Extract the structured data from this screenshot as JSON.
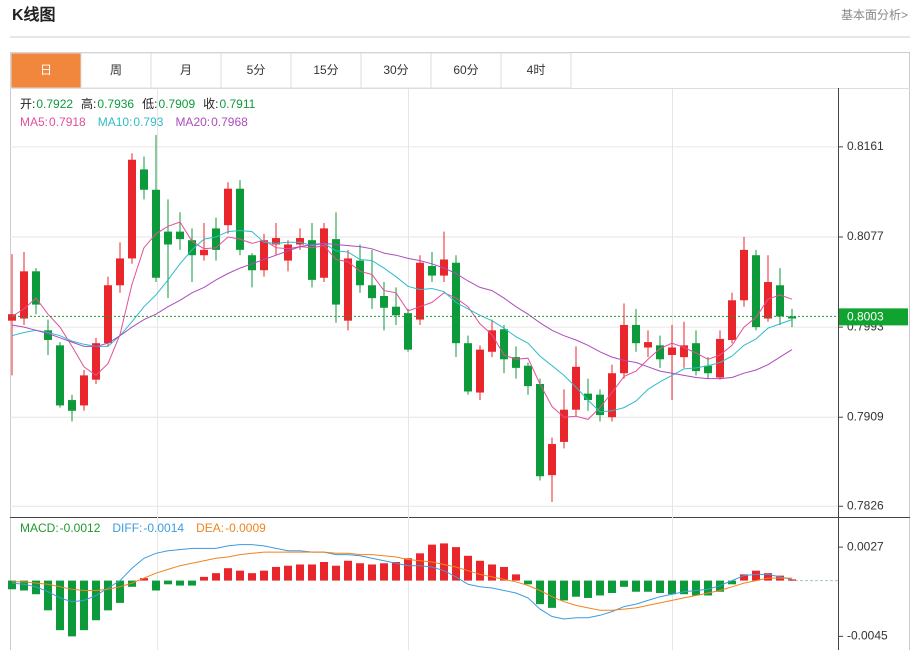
{
  "header": {
    "title": "K线图",
    "link": "基本面分析>"
  },
  "tabs": [
    "日",
    "周",
    "月",
    "5分",
    "15分",
    "30分",
    "60分",
    "4时"
  ],
  "active_tab": 0,
  "chart_data": {
    "type": "candlestick",
    "ohlc_readout": [
      {
        "label": "开:",
        "value": 0.7922
      },
      {
        "label": "高:",
        "value": 0.7936
      },
      {
        "label": "低:",
        "value": 0.7909
      },
      {
        "label": "收:",
        "value": 0.7911
      }
    ],
    "up_color": "#e8262b",
    "down_color": "#0d9a3a",
    "ylim": [
      0.7816,
      0.8214
    ],
    "yticks": [
      0.8161,
      0.8077,
      0.7993,
      0.7909,
      0.7826
    ],
    "grid": true,
    "last_price": 0.8003,
    "open": [
      0.7999,
      0.8001,
      0.8045,
      0.799,
      0.7976,
      0.7925,
      0.792,
      0.7944,
      0.7978,
      0.8032,
      0.8057,
      0.814,
      0.8121,
      0.8082,
      0.8082,
      0.8074,
      0.806,
      0.8085,
      0.8088,
      0.8122,
      0.806,
      0.8046,
      0.807,
      0.8055,
      0.807,
      0.8074,
      0.8039,
      0.8075,
      0.7999,
      0.8055,
      0.8032,
      0.8022,
      0.8012,
      0.8006,
      0.8,
      0.805,
      0.8041,
      0.8053,
      0.7978,
      0.7932,
      0.797,
      0.7991,
      0.7965,
      0.7957,
      0.794,
      0.7855,
      0.7886,
      0.7916,
      0.7931,
      0.793,
      0.7909,
      0.795,
      0.7995,
      0.7974,
      0.7976,
      0.7967,
      0.7965,
      0.7978,
      0.7957,
      0.7946,
      0.7981,
      0.8018,
      0.806,
      0.8001,
      0.8032,
      0.8003
    ],
    "high": [
      0.8061,
      0.8063,
      0.8048,
      0.8,
      0.7979,
      0.793,
      0.7953,
      0.7983,
      0.804,
      0.8072,
      0.8155,
      0.8152,
      0.8172,
      0.8112,
      0.81,
      0.8085,
      0.809,
      0.8095,
      0.8128,
      0.813,
      0.8062,
      0.808,
      0.809,
      0.8074,
      0.8085,
      0.809,
      0.809,
      0.81,
      0.8065,
      0.807,
      0.8065,
      0.8035,
      0.803,
      0.801,
      0.806,
      0.8063,
      0.8082,
      0.806,
      0.7985,
      0.7976,
      0.8,
      0.7995,
      0.7975,
      0.796,
      0.7945,
      0.789,
      0.7935,
      0.7975,
      0.7945,
      0.7935,
      0.7958,
      0.8015,
      0.801,
      0.799,
      0.7985,
      0.7995,
      0.7998,
      0.799,
      0.7965,
      0.799,
      0.8025,
      0.8077,
      0.8065,
      0.806,
      0.8048,
      0.801
    ],
    "low": [
      0.7948,
      0.7995,
      0.8005,
      0.7967,
      0.7918,
      0.7905,
      0.7915,
      0.794,
      0.7975,
      0.8025,
      0.8052,
      0.8112,
      0.8035,
      0.802,
      0.8065,
      0.8035,
      0.8055,
      0.8055,
      0.808,
      0.806,
      0.803,
      0.804,
      0.806,
      0.8045,
      0.8065,
      0.803,
      0.8035,
      0.7997,
      0.799,
      0.8025,
      0.801,
      0.799,
      0.7995,
      0.797,
      0.7995,
      0.8035,
      0.8035,
      0.7965,
      0.793,
      0.7925,
      0.7965,
      0.795,
      0.7945,
      0.793,
      0.785,
      0.783,
      0.788,
      0.791,
      0.7915,
      0.7905,
      0.7905,
      0.7945,
      0.797,
      0.7965,
      0.7955,
      0.7925,
      0.7955,
      0.7948,
      0.7945,
      0.7944,
      0.7978,
      0.8012,
      0.799,
      0.7998,
      0.7995,
      0.7993
    ],
    "close": [
      0.8005,
      0.8045,
      0.8014,
      0.7981,
      0.792,
      0.7915,
      0.7948,
      0.7978,
      0.8032,
      0.8057,
      0.8149,
      0.8121,
      0.8039,
      0.807,
      0.8075,
      0.806,
      0.8065,
      0.8065,
      0.8122,
      0.8065,
      0.8046,
      0.8074,
      0.8076,
      0.807,
      0.8076,
      0.8037,
      0.8085,
      0.8014,
      0.8057,
      0.8032,
      0.802,
      0.8011,
      0.8004,
      0.7972,
      0.8053,
      0.8041,
      0.8056,
      0.7978,
      0.7933,
      0.7972,
      0.799,
      0.7963,
      0.7955,
      0.7938,
      0.7854,
      0.7884,
      0.7916,
      0.7956,
      0.7925,
      0.7911,
      0.795,
      0.7995,
      0.7978,
      0.7979,
      0.7963,
      0.7974,
      0.7976,
      0.7952,
      0.795,
      0.7982,
      0.8018,
      0.8065,
      0.7993,
      0.8035,
      0.8003,
      0.8001
    ],
    "series": [
      {
        "name": "MA5:",
        "current": 0.7918,
        "color": "#e2509a",
        "values": [
          0.8003,
          0.801,
          0.802,
          0.8005,
          0.7993,
          0.7975,
          0.7956,
          0.7948,
          0.7959,
          0.7986,
          0.8033,
          0.8067,
          0.808,
          0.8087,
          0.8091,
          0.8073,
          0.8066,
          0.8067,
          0.8077,
          0.8075,
          0.8071,
          0.8074,
          0.8067,
          0.8066,
          0.8068,
          0.8067,
          0.8069,
          0.8056,
          0.8054,
          0.8045,
          0.8042,
          0.8027,
          0.8025,
          0.8008,
          0.8012,
          0.8016,
          0.8025,
          0.802,
          0.8012,
          0.7996,
          0.7986,
          0.7967,
          0.7963,
          0.7964,
          0.794,
          0.7919,
          0.7909,
          0.791,
          0.7907,
          0.7918,
          0.7932,
          0.7947,
          0.7952,
          0.7963,
          0.7973,
          0.7978,
          0.7974,
          0.7969,
          0.7963,
          0.7967,
          0.7976,
          0.7993,
          0.8002,
          0.8019,
          0.8023,
          0.8019
        ]
      },
      {
        "name": "MA10:",
        "current": 0.793,
        "color": "#30bccb",
        "values": [
          0.7985,
          0.7988,
          0.799,
          0.7988,
          0.7985,
          0.798,
          0.7977,
          0.7975,
          0.7975,
          0.7985,
          0.7998,
          0.8012,
          0.8023,
          0.8037,
          0.8052,
          0.8065,
          0.8075,
          0.8077,
          0.8082,
          0.8083,
          0.8082,
          0.8072,
          0.8071,
          0.8072,
          0.8072,
          0.8069,
          0.8071,
          0.8064,
          0.8063,
          0.8056,
          0.8055,
          0.8048,
          0.804,
          0.8031,
          0.8028,
          0.8029,
          0.8026,
          0.8016,
          0.801,
          0.8004,
          0.7999,
          0.7992,
          0.7984,
          0.7978,
          0.7966,
          0.7957,
          0.7948,
          0.7937,
          0.7925,
          0.7914,
          0.7915,
          0.7918,
          0.7924,
          0.7935,
          0.7942,
          0.7948,
          0.7954,
          0.7955,
          0.7957,
          0.796,
          0.7966,
          0.7976,
          0.7982,
          0.7992,
          0.7996,
          0.8
        ]
      },
      {
        "name": "MA20:",
        "current": 0.7968,
        "color": "#ac4cbf",
        "values": [
          0.7995,
          0.7993,
          0.799,
          0.7987,
          0.7983,
          0.7979,
          0.7975,
          0.7975,
          0.7978,
          0.7985,
          0.7993,
          0.8,
          0.8005,
          0.8012,
          0.8018,
          0.8025,
          0.803,
          0.8037,
          0.8043,
          0.8048,
          0.8052,
          0.8056,
          0.806,
          0.8064,
          0.8068,
          0.807,
          0.8071,
          0.807,
          0.8069,
          0.8068,
          0.8066,
          0.8062,
          0.806,
          0.8057,
          0.8055,
          0.8052,
          0.8048,
          0.8043,
          0.8036,
          0.803,
          0.8027,
          0.802,
          0.8012,
          0.8005,
          0.7997,
          0.799,
          0.7985,
          0.7981,
          0.7976,
          0.797,
          0.7965,
          0.7962,
          0.796,
          0.7956,
          0.7952,
          0.795,
          0.7948,
          0.7946,
          0.7945,
          0.7945,
          0.7946,
          0.795,
          0.7953,
          0.7958,
          0.7965,
          0.7972
        ]
      }
    ],
    "macd": {
      "ylim": [
        -0.0056,
        0.00505
      ],
      "yticks": [
        0.0027,
        -0.0045
      ],
      "label": "MACD:",
      "current": -0.0012,
      "color_label": "#1f9a2e",
      "values": [
        -0.0007,
        -0.0008,
        -0.0011,
        -0.0024,
        -0.004,
        -0.0045,
        -0.004,
        -0.0032,
        -0.0024,
        -0.0018,
        -0.0005,
        0.0002,
        -0.0008,
        -0.0003,
        -0.0004,
        -0.0004,
        0.0003,
        0.0006,
        0.001,
        0.0008,
        0.0006,
        0.0008,
        0.0011,
        0.0012,
        0.0013,
        0.0013,
        0.0015,
        0.0012,
        0.0016,
        0.0014,
        0.0013,
        0.0014,
        0.0015,
        0.0018,
        0.0022,
        0.0029,
        0.003,
        0.0027,
        0.002,
        0.0016,
        0.0013,
        0.0011,
        0.0005,
        -0.0003,
        -0.0019,
        -0.0022,
        -0.0016,
        -0.0013,
        -0.0014,
        -0.0012,
        -0.001,
        -0.0005,
        -0.0009,
        -0.0009,
        -0.001,
        -0.0011,
        -0.0011,
        -0.0012,
        -0.0012,
        -0.0009,
        -0.0003,
        0.0005,
        0.0008,
        0.0006,
        0.0004,
        0.0001
      ],
      "series": [
        {
          "name": "DIFF:",
          "current": -0.0014,
          "color": "#3d9be0",
          "values": [
            -0.0002,
            -0.0003,
            -0.0005,
            -0.0009,
            -0.0014,
            -0.0017,
            -0.0016,
            -0.0012,
            -0.0006,
            0.0,
            0.001,
            0.0018,
            0.0022,
            0.0024,
            0.0025,
            0.0026,
            0.0026,
            0.0026,
            0.0028,
            0.0029,
            0.0029,
            0.0028,
            0.0026,
            0.0024,
            0.0024,
            0.0023,
            0.0023,
            0.0021,
            0.0021,
            0.002,
            0.0018,
            0.0016,
            0.0014,
            0.0012,
            0.0012,
            0.0011,
            0.0008,
            0.0003,
            -0.0003,
            -0.0005,
            -0.0006,
            -0.0008,
            -0.001,
            -0.0014,
            -0.0023,
            -0.0029,
            -0.0031,
            -0.003,
            -0.003,
            -0.0028,
            -0.0025,
            -0.0021,
            -0.0019,
            -0.0016,
            -0.0013,
            -0.0011,
            -0.0009,
            -0.0008,
            -0.0007,
            -0.0004,
            0.0,
            0.0004,
            0.0005,
            0.0005,
            0.0003,
            0.0001
          ]
        },
        {
          "name": "DEA:",
          "current": -0.0009,
          "color": "#f0841f",
          "values": [
            -0.0001,
            -0.0001,
            -0.0002,
            -0.0003,
            -0.0005,
            -0.0007,
            -0.0008,
            -0.0008,
            -0.0007,
            -0.0005,
            -0.0002,
            0.0002,
            0.0006,
            0.0009,
            0.0012,
            0.0014,
            0.0016,
            0.0018,
            0.0019,
            0.0021,
            0.0022,
            0.0023,
            0.0023,
            0.0023,
            0.0023,
            0.0023,
            0.0023,
            0.0022,
            0.0022,
            0.0021,
            0.0021,
            0.002,
            0.0019,
            0.0017,
            0.0016,
            0.0015,
            0.0013,
            0.0011,
            0.0008,
            0.0005,
            0.0003,
            0.0001,
            -0.0001,
            -0.0004,
            -0.0008,
            -0.0013,
            -0.0017,
            -0.002,
            -0.0022,
            -0.0024,
            -0.0024,
            -0.0023,
            -0.0022,
            -0.002,
            -0.0018,
            -0.0016,
            -0.0014,
            -0.0012,
            -0.001,
            -0.0008,
            -0.0005,
            -0.0002,
            0.0,
            0.0002,
            0.0002,
            0.0002
          ]
        }
      ]
    }
  }
}
